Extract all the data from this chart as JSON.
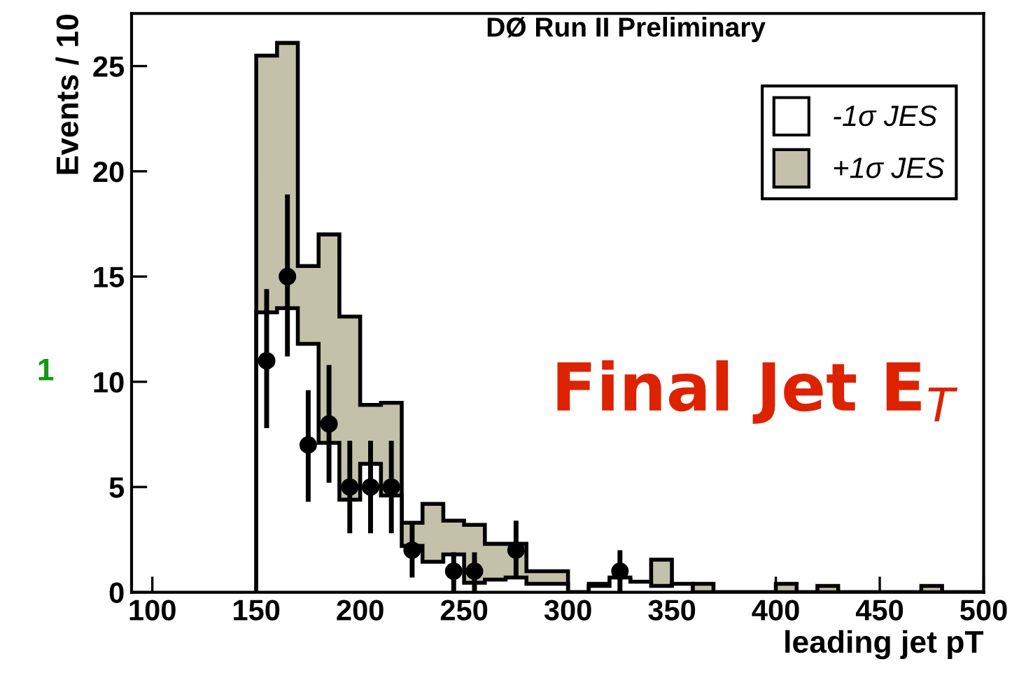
{
  "chart_data": {
    "type": "histogram",
    "title": "DØ Run II Preliminary",
    "xlabel": "leading jet pT",
    "ylabel": "Events / 10",
    "bins": [
      150,
      160,
      170,
      180,
      190,
      200,
      210,
      220,
      230,
      240,
      250,
      260,
      270,
      280,
      290,
      300,
      310,
      320,
      330,
      340,
      350,
      360,
      370,
      380,
      390,
      400,
      410,
      420,
      430,
      440,
      450,
      460,
      470,
      480,
      490,
      500
    ],
    "series": [
      {
        "name": "+1σ JES",
        "color": "#c3c1aa",
        "values": [
          25.5,
          26.1,
          15.5,
          17.0,
          13.1,
          8.9,
          9.0,
          3.3,
          4.2,
          3.4,
          3.2,
          2.3,
          2.3,
          1.0,
          1.0,
          0,
          0.4,
          0.6,
          0.45,
          1.55,
          0,
          0.4,
          0,
          0,
          0,
          0.4,
          0,
          0.3,
          0,
          0,
          0,
          0,
          0.3,
          0,
          0
        ]
      },
      {
        "name": "-1σ JES",
        "color": "#ffffff",
        "values": [
          13.3,
          13.5,
          11.8,
          7.1,
          4.4,
          6.1,
          4.6,
          2.2,
          1.45,
          1.8,
          0.45,
          0.6,
          0.7,
          0.4,
          0.4,
          0,
          0.3,
          0.7,
          0.5,
          0.3,
          0.4,
          0,
          0,
          0,
          0,
          0,
          0,
          0,
          0,
          0,
          0,
          0,
          0,
          0,
          0
        ]
      },
      {
        "type": "scatter",
        "color": "#000000",
        "marker": "circle",
        "x": [
          155,
          165,
          175,
          185,
          195,
          205,
          215,
          225,
          245,
          255,
          275,
          325
        ],
        "values": [
          11,
          15,
          7,
          8,
          5,
          5,
          5,
          2,
          1,
          1,
          2,
          1
        ],
        "errors": [
          [
            7.8,
            14.4
          ],
          [
            11.2,
            18.9
          ],
          [
            4.3,
            9.6
          ],
          [
            5.2,
            10.8
          ],
          [
            2.8,
            7.2
          ],
          [
            2.8,
            7.2
          ],
          [
            2.8,
            7.2
          ],
          [
            0.7,
            3.3
          ],
          [
            0,
            1.9
          ],
          [
            0,
            1.9
          ],
          [
            0.7,
            3.4
          ],
          [
            0,
            2.0
          ]
        ]
      }
    ],
    "xlim": [
      90,
      500
    ],
    "xticks": [
      100,
      150,
      200,
      250,
      300,
      350,
      400,
      450,
      500
    ],
    "ylim": [
      0,
      27.5
    ],
    "yticks": [
      0,
      5,
      10,
      15,
      20,
      25
    ],
    "grid": false,
    "legend": "top right",
    "annotations": [
      "Final Jet E$_{T}$",
      "1"
    ]
  }
}
